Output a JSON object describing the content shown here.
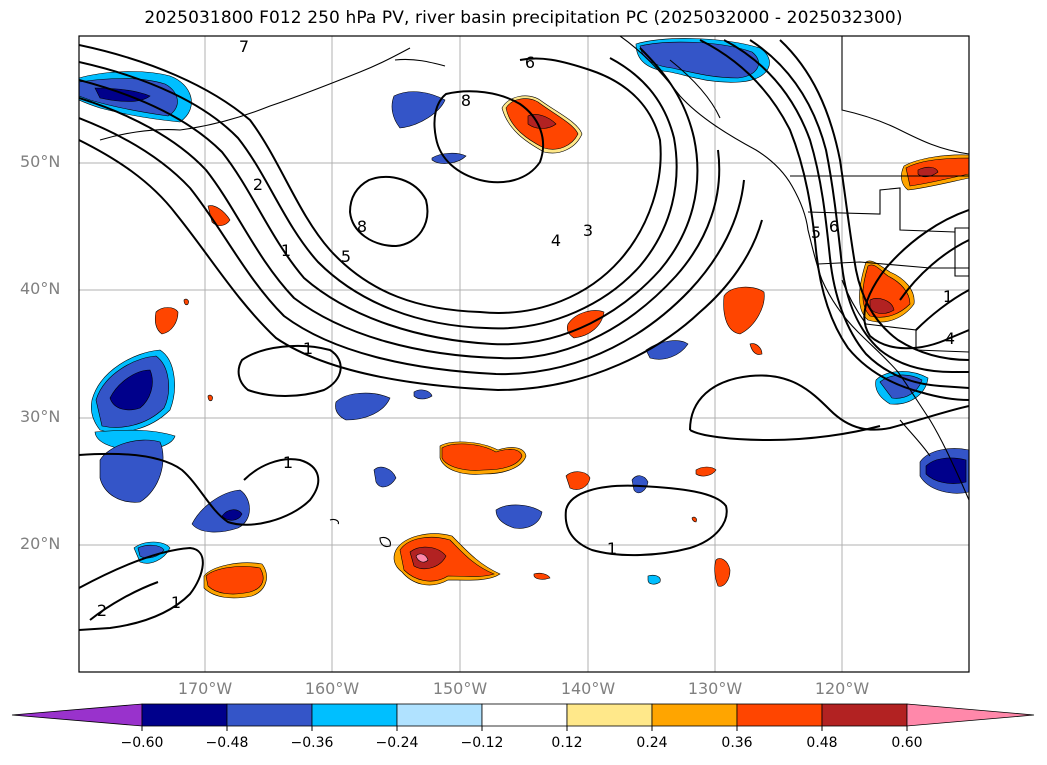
{
  "title": "2025031800 F012 250 hPa PV, river basin precipitation PC (2025032000 - 2025032300)",
  "lat_labels": [
    "50°N",
    "40°N",
    "30°N",
    "20°N"
  ],
  "lon_labels": [
    "170°W",
    "160°W",
    "150°W",
    "140°W",
    "130°W",
    "120°W"
  ],
  "contour_labels": [
    "7",
    "6",
    "8",
    "2",
    "1",
    "5",
    "8",
    "4",
    "3",
    "1",
    "1",
    "2",
    "1",
    "1",
    "5",
    "6",
    "1",
    "4"
  ],
  "colorbar": {
    "ticks": [
      "−0.60",
      "−0.48",
      "−0.36",
      "−0.24",
      "−0.12",
      "0.12",
      "0.24",
      "0.36",
      "0.48",
      "0.60"
    ],
    "colors": [
      "#9932cc",
      "#00008b",
      "#3455c8",
      "#00bfff",
      "#b0e2ff",
      "#ffffff",
      "#ffe88a",
      "#ffa500",
      "#ff4500",
      "#b22222",
      "#ff88aa"
    ]
  }
}
